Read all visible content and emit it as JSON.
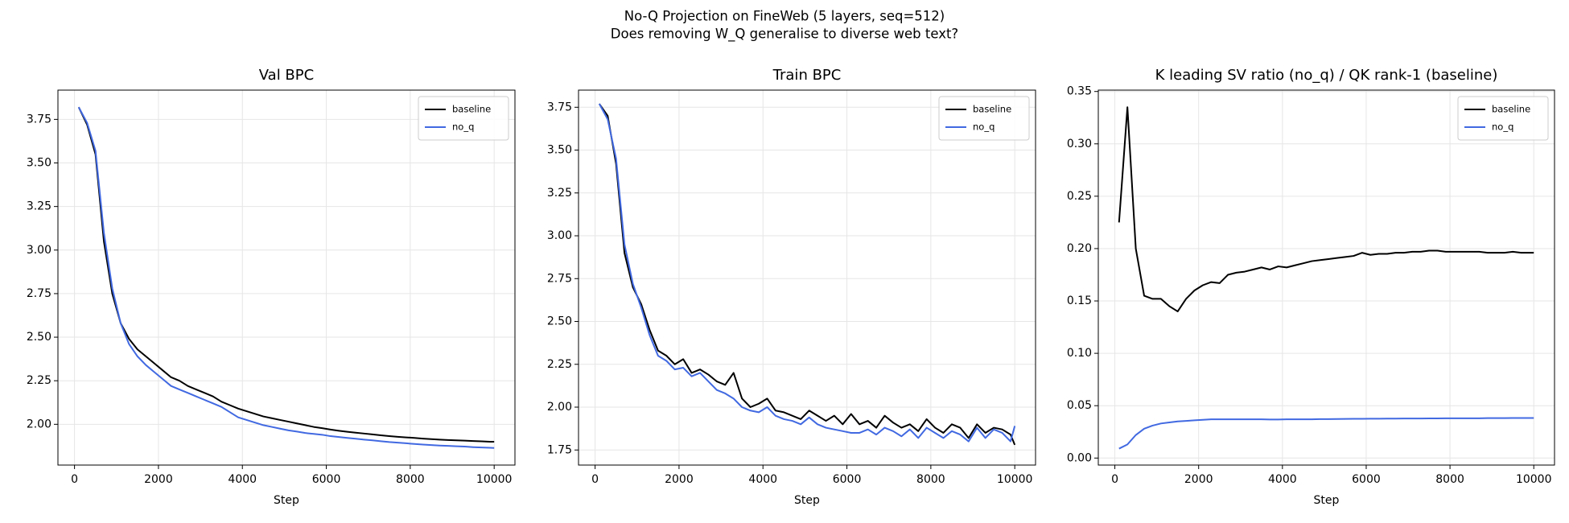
{
  "title": "No-Q Projection on FineWeb (5 layers, seq=512)",
  "subtitle": "Does removing W_Q generalise to diverse web text?",
  "chart_data": [
    {
      "type": "line",
      "title": "Val BPC",
      "x_label": "Step",
      "grid": true,
      "legend": "upper right",
      "x": [
        100,
        300,
        500,
        700,
        900,
        1100,
        1300,
        1500,
        1700,
        1900,
        2100,
        2300,
        2500,
        2700,
        2900,
        3100,
        3300,
        3500,
        3700,
        3900,
        4100,
        4300,
        4500,
        4700,
        4900,
        5100,
        5300,
        5500,
        5700,
        5900,
        6100,
        6300,
        6500,
        6700,
        6900,
        7100,
        7300,
        7500,
        7700,
        7900,
        8100,
        8300,
        8500,
        8700,
        8900,
        9100,
        9300,
        9500,
        9700,
        9900,
        10000
      ],
      "xlim": [
        -395,
        10495
      ],
      "xticks": [
        0,
        2000,
        4000,
        6000,
        8000,
        10000
      ],
      "ylim": [
        1.766,
        3.918
      ],
      "yticks": [
        {
          "value": 2,
          "label": "2.00"
        },
        {
          "value": 2.25,
          "label": "2.25"
        },
        {
          "value": 2.5,
          "label": "2.50"
        },
        {
          "value": 2.75,
          "label": "2.75"
        },
        {
          "value": 3,
          "label": "3.00"
        },
        {
          "value": 3.25,
          "label": "3.25"
        },
        {
          "value": 3.5,
          "label": "3.50"
        },
        {
          "value": 3.75,
          "label": "3.75"
        }
      ],
      "series": [
        {
          "name": "baseline",
          "color": "#000000",
          "values": [
            3.82,
            3.72,
            3.55,
            3.05,
            2.75,
            2.58,
            2.49,
            2.43,
            2.39,
            2.35,
            2.31,
            2.27,
            2.25,
            2.22,
            2.2,
            2.18,
            2.16,
            2.13,
            2.11,
            2.09,
            2.075,
            2.06,
            2.045,
            2.035,
            2.025,
            2.015,
            2.005,
            1.995,
            1.985,
            1.978,
            1.97,
            1.963,
            1.957,
            1.952,
            1.947,
            1.942,
            1.937,
            1.932,
            1.928,
            1.925,
            1.922,
            1.918,
            1.915,
            1.912,
            1.91,
            1.908,
            1.906,
            1.904,
            1.902,
            1.9,
            1.9
          ]
        },
        {
          "name": "no_q",
          "color": "#4169e1",
          "values": [
            3.82,
            3.73,
            3.57,
            3.1,
            2.78,
            2.58,
            2.46,
            2.39,
            2.34,
            2.3,
            2.26,
            2.22,
            2.2,
            2.18,
            2.16,
            2.14,
            2.12,
            2.1,
            2.07,
            2.04,
            2.025,
            2.01,
            1.995,
            1.985,
            1.975,
            1.965,
            1.958,
            1.95,
            1.945,
            1.94,
            1.932,
            1.927,
            1.922,
            1.917,
            1.912,
            1.908,
            1.903,
            1.898,
            1.895,
            1.891,
            1.887,
            1.884,
            1.881,
            1.878,
            1.876,
            1.874,
            1.872,
            1.869,
            1.867,
            1.865,
            1.864
          ]
        }
      ]
    },
    {
      "type": "line",
      "title": "Train BPC",
      "x_label": "Step",
      "grid": true,
      "legend": "upper right",
      "x": [
        100,
        300,
        500,
        700,
        900,
        1100,
        1300,
        1500,
        1700,
        1900,
        2100,
        2300,
        2500,
        2700,
        2900,
        3100,
        3300,
        3500,
        3700,
        3900,
        4100,
        4300,
        4500,
        4700,
        4900,
        5100,
        5300,
        5500,
        5700,
        5900,
        6100,
        6300,
        6500,
        6700,
        6900,
        7100,
        7300,
        7500,
        7700,
        7900,
        8100,
        8300,
        8500,
        8700,
        8900,
        9100,
        9300,
        9500,
        9700,
        9900,
        10000
      ],
      "xlim": [
        -395,
        10495
      ],
      "xticks": [
        0,
        2000,
        4000,
        6000,
        8000,
        10000
      ],
      "ylim": [
        1.662,
        3.85
      ],
      "yticks": [
        {
          "value": 1.75,
          "label": "1.75"
        },
        {
          "value": 2,
          "label": "2.00"
        },
        {
          "value": 2.25,
          "label": "2.25"
        },
        {
          "value": 2.5,
          "label": "2.50"
        },
        {
          "value": 2.75,
          "label": "2.75"
        },
        {
          "value": 3,
          "label": "3.00"
        },
        {
          "value": 3.25,
          "label": "3.25"
        },
        {
          "value": 3.5,
          "label": "3.50"
        },
        {
          "value": 3.75,
          "label": "3.75"
        }
      ],
      "series": [
        {
          "name": "baseline",
          "color": "#000000",
          "values": [
            3.77,
            3.7,
            3.42,
            2.9,
            2.7,
            2.6,
            2.45,
            2.33,
            2.3,
            2.25,
            2.28,
            2.2,
            2.22,
            2.19,
            2.15,
            2.13,
            2.2,
            2.05,
            2.0,
            2.02,
            2.05,
            1.98,
            1.97,
            1.95,
            1.93,
            1.98,
            1.95,
            1.92,
            1.95,
            1.9,
            1.96,
            1.9,
            1.92,
            1.88,
            1.95,
            1.91,
            1.88,
            1.9,
            1.86,
            1.93,
            1.88,
            1.85,
            1.9,
            1.88,
            1.82,
            1.9,
            1.85,
            1.88,
            1.87,
            1.84,
            1.78
          ]
        },
        {
          "name": "no_q",
          "color": "#4169e1",
          "values": [
            3.77,
            3.68,
            3.45,
            2.95,
            2.72,
            2.58,
            2.42,
            2.3,
            2.27,
            2.22,
            2.23,
            2.18,
            2.2,
            2.15,
            2.1,
            2.08,
            2.05,
            2.0,
            1.98,
            1.97,
            2.0,
            1.95,
            1.93,
            1.92,
            1.9,
            1.94,
            1.9,
            1.88,
            1.87,
            1.86,
            1.85,
            1.85,
            1.87,
            1.84,
            1.88,
            1.86,
            1.83,
            1.87,
            1.82,
            1.88,
            1.85,
            1.82,
            1.86,
            1.84,
            1.8,
            1.88,
            1.82,
            1.87,
            1.85,
            1.8,
            1.89
          ]
        }
      ]
    },
    {
      "type": "line",
      "title": "K leading SV ratio (no_q) / QK rank-1 (baseline)",
      "x_label": "Step",
      "grid": true,
      "legend": "upper right",
      "x": [
        100,
        300,
        500,
        700,
        900,
        1100,
        1300,
        1500,
        1700,
        1900,
        2100,
        2300,
        2500,
        2700,
        2900,
        3100,
        3300,
        3500,
        3700,
        3900,
        4100,
        4300,
        4500,
        4700,
        4900,
        5100,
        5300,
        5500,
        5700,
        5900,
        6100,
        6300,
        6500,
        6700,
        6900,
        7100,
        7300,
        7500,
        7700,
        7900,
        8100,
        8300,
        8500,
        8700,
        8900,
        9100,
        9300,
        9500,
        9700,
        9900,
        10000
      ],
      "xlim": [
        -395,
        10495
      ],
      "xticks": [
        0,
        2000,
        4000,
        6000,
        8000,
        10000
      ],
      "ylim": [
        -0.0067,
        0.3513
      ],
      "yticks": [
        {
          "value": 0,
          "label": "0.00"
        },
        {
          "value": 0.05,
          "label": "0.05"
        },
        {
          "value": 0.1,
          "label": "0.10"
        },
        {
          "value": 0.15,
          "label": "0.15"
        },
        {
          "value": 0.2,
          "label": "0.20"
        },
        {
          "value": 0.25,
          "label": "0.25"
        },
        {
          "value": 0.3,
          "label": "0.30"
        },
        {
          "value": 0.35,
          "label": "0.35"
        }
      ],
      "series": [
        {
          "name": "baseline",
          "color": "#000000",
          "values": [
            0.225,
            0.335,
            0.2,
            0.155,
            0.152,
            0.152,
            0.145,
            0.14,
            0.152,
            0.16,
            0.165,
            0.168,
            0.167,
            0.175,
            0.177,
            0.178,
            0.18,
            0.182,
            0.18,
            0.183,
            0.182,
            0.184,
            0.186,
            0.188,
            0.189,
            0.19,
            0.191,
            0.192,
            0.193,
            0.196,
            0.194,
            0.195,
            0.195,
            0.196,
            0.196,
            0.197,
            0.197,
            0.198,
            0.198,
            0.197,
            0.197,
            0.197,
            0.197,
            0.197,
            0.196,
            0.196,
            0.196,
            0.197,
            0.196,
            0.196,
            0.196
          ]
        },
        {
          "name": "no_q",
          "color": "#4169e1",
          "values": [
            0.009,
            0.013,
            0.022,
            0.028,
            0.031,
            0.033,
            0.034,
            0.035,
            0.0355,
            0.036,
            0.0365,
            0.037,
            0.037,
            0.037,
            0.037,
            0.037,
            0.037,
            0.037,
            0.0368,
            0.0368,
            0.037,
            0.037,
            0.037,
            0.037,
            0.0372,
            0.0372,
            0.0373,
            0.0374,
            0.0375,
            0.0375,
            0.0376,
            0.0376,
            0.0377,
            0.0377,
            0.0378,
            0.0378,
            0.0378,
            0.0379,
            0.0379,
            0.038,
            0.038,
            0.038,
            0.038,
            0.038,
            0.0381,
            0.0381,
            0.0381,
            0.0382,
            0.0382,
            0.0382,
            0.0382
          ]
        }
      ]
    }
  ]
}
